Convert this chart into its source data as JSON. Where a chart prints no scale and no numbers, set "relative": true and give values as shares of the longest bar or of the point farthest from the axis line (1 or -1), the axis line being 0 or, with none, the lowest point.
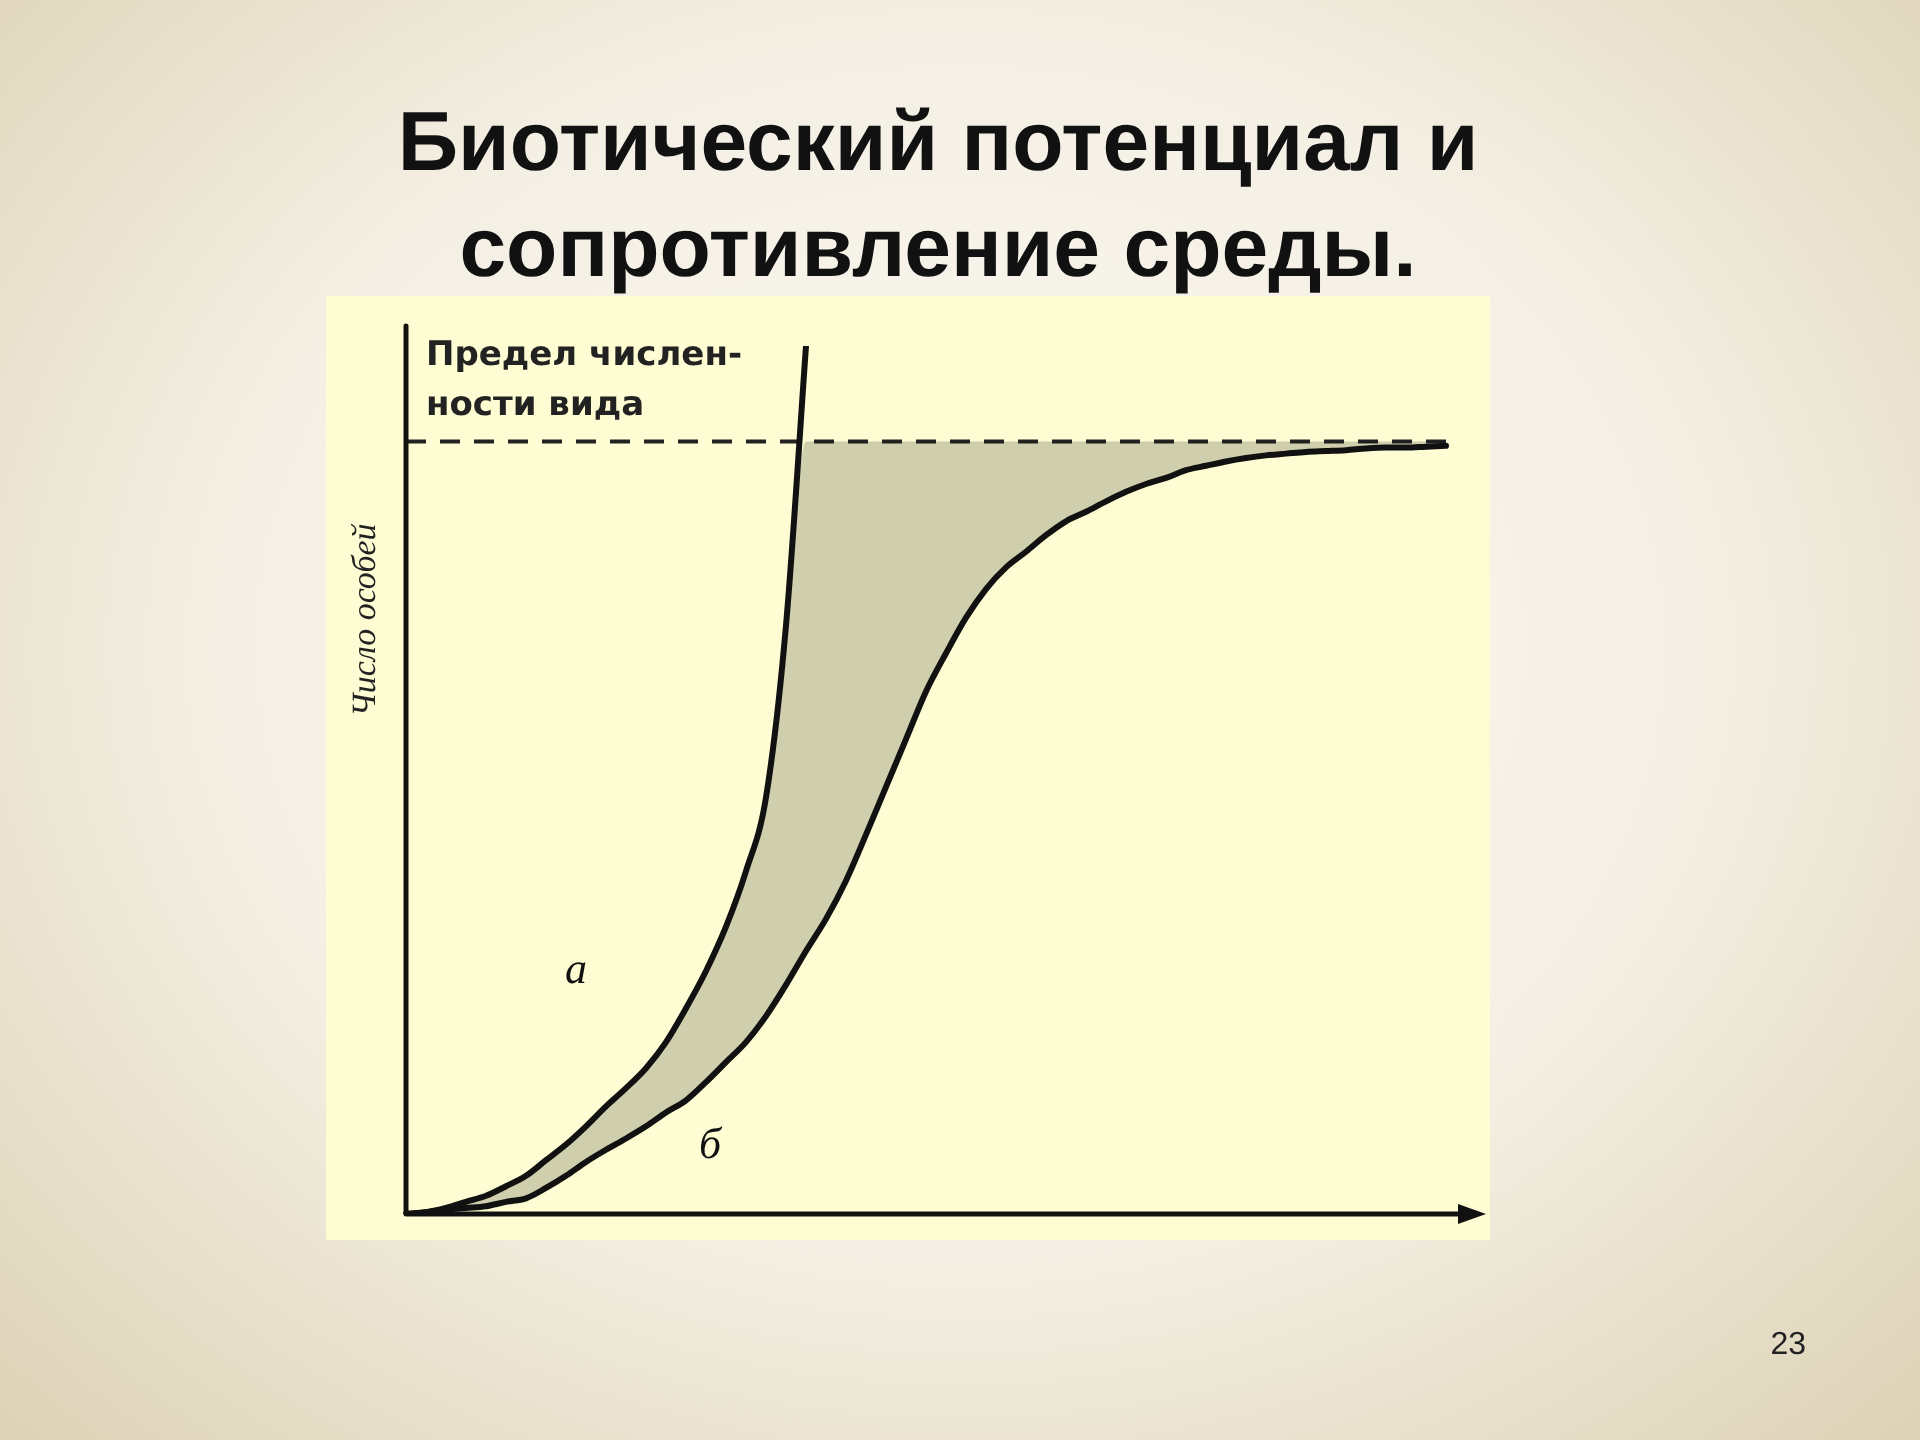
{
  "chart_data": {
    "type": "line",
    "title": "Биотический потенциал и сопротивление среды.",
    "ylabel": "Число особей",
    "relative": true,
    "categories": [
      null,
      null,
      null,
      null,
      null,
      null,
      null,
      null,
      null,
      null,
      null,
      null,
      null,
      null,
      null,
      null,
      null,
      null,
      null,
      null,
      null,
      null,
      null,
      null,
      null,
      null,
      null,
      null,
      null,
      null,
      null,
      null,
      null,
      null,
      null,
      null,
      null,
      null,
      null,
      null,
      null,
      null,
      null,
      null,
      null,
      null,
      null,
      null,
      null,
      null,
      null,
      null,
      null,
      null,
      null
    ],
    "series": [
      {
        "name": "а",
        "color": "#111111",
        "values": [
          0,
          0.002,
          0.007,
          0.014,
          0.021,
          0.032,
          0.044,
          0.062,
          0.08,
          0.101,
          0.124,
          0.145,
          0.168,
          0.198,
          0.237,
          0.28,
          0.331,
          0.395,
          0.48,
          0.678,
          1,
          null,
          null,
          null,
          null,
          null,
          null,
          null,
          null,
          null,
          null,
          null,
          null,
          null,
          null,
          null,
          null,
          null,
          null,
          null,
          null,
          null,
          null,
          null,
          null,
          null,
          null,
          null,
          null,
          null,
          null,
          null,
          null,
          null,
          null
        ]
      },
      {
        "name": "б",
        "color": "#111111",
        "values": [
          0,
          0.002,
          0.005,
          0.007,
          0.009,
          0.014,
          0.018,
          0.03,
          0.044,
          0.06,
          0.074,
          0.087,
          0.101,
          0.117,
          0.131,
          0.152,
          0.175,
          0.198,
          0.228,
          0.264,
          0.303,
          0.34,
          0.384,
          0.437,
          0.492,
          0.547,
          0.602,
          0.646,
          0.687,
          0.72,
          0.745,
          0.763,
          0.782,
          0.798,
          0.809,
          0.821,
          0.832,
          0.841,
          0.848,
          0.857,
          0.862,
          0.867,
          0.871,
          0.874,
          0.876,
          0.878,
          0.879,
          0.88,
          0.882,
          0.883,
          0.883,
          0.884,
          0.885,
          null,
          null
        ],
        "lower": [
          0,
          0.002,
          0.005,
          0.007,
          0.009,
          0.014,
          0.018,
          0.03,
          0.044,
          0.06,
          0.074,
          0.087,
          0.101,
          0.117,
          0.131,
          0.152,
          0.175,
          0.198,
          0.228,
          0.264,
          0.303,
          0.34,
          0.384,
          0.437,
          0.492,
          0.547,
          0.602,
          0.646,
          0.687,
          0.72,
          0.745,
          0.763,
          0.782,
          0.798,
          0.809,
          0.821,
          0.832,
          0.841,
          0.848,
          0.857,
          0.862,
          0.867,
          0.871,
          0.874,
          0.876,
          0.878,
          0.879,
          0.88,
          0.882,
          0.883,
          0.883,
          0.884,
          0.885,
          null,
          null
        ],
        "upper": [
          0,
          0.002,
          0.007,
          0.014,
          0.021,
          0.032,
          0.044,
          0.062,
          0.08,
          0.101,
          0.124,
          0.145,
          0.168,
          0.198,
          0.237,
          0.28,
          0.331,
          0.395,
          0.48,
          0.678,
          0.89,
          0.89,
          0.89,
          0.89,
          0.89,
          0.89,
          0.89,
          0.89,
          0.89,
          0.89,
          0.89,
          0.89,
          0.89,
          0.89,
          0.89,
          0.89,
          0.89,
          0.89,
          0.89,
          0.89,
          0.89,
          0.89,
          0.89,
          0.89,
          0.89,
          0.89,
          0.89,
          0.89,
          0.89,
          0.89,
          0.89,
          0.89,
          0.89,
          null,
          null
        ]
      }
    ],
    "ref_lines": [
      {
        "axis": "y",
        "value": 0.89,
        "label": "Предел числен-\nности вида",
        "color": "#222222",
        "line_style": "dashed"
      }
    ],
    "legend": false,
    "grid": false,
    "marker": "none",
    "annotations": [
      "23"
    ]
  }
}
